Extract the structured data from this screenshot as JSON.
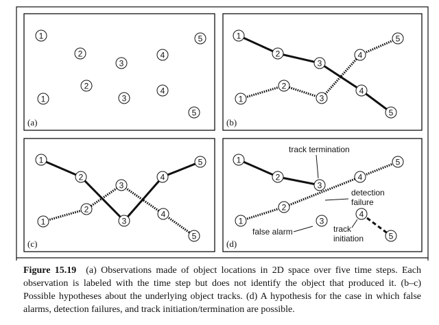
{
  "panels": [
    {
      "id": "a",
      "label": "(a)",
      "nodes": [
        {
          "t": "1"
        },
        {
          "t": "2"
        },
        {
          "t": "3"
        },
        {
          "t": "4"
        },
        {
          "t": "5"
        },
        {
          "t": "1"
        },
        {
          "t": "2"
        },
        {
          "t": "3"
        },
        {
          "t": "4"
        },
        {
          "t": "5"
        }
      ],
      "tracks": []
    },
    {
      "id": "b",
      "label": "(b)",
      "nodes": [
        {
          "t": "1"
        },
        {
          "t": "2"
        },
        {
          "t": "3"
        },
        {
          "t": "4"
        },
        {
          "t": "5"
        },
        {
          "t": "1"
        },
        {
          "t": "2"
        },
        {
          "t": "3"
        },
        {
          "t": "4"
        },
        {
          "t": "5"
        }
      ],
      "tracks": [
        {
          "style": "solid",
          "nodes": [
            0,
            1,
            2,
            8,
            9
          ]
        },
        {
          "style": "dotted",
          "nodes": [
            5,
            6,
            7,
            3,
            4
          ]
        }
      ]
    },
    {
      "id": "c",
      "label": "(c)",
      "nodes": [
        {
          "t": "1"
        },
        {
          "t": "2"
        },
        {
          "t": "3"
        },
        {
          "t": "4"
        },
        {
          "t": "5"
        },
        {
          "t": "1"
        },
        {
          "t": "2"
        },
        {
          "t": "3"
        },
        {
          "t": "4"
        },
        {
          "t": "5"
        }
      ],
      "tracks": [
        {
          "style": "solid",
          "nodes": [
            0,
            1,
            7,
            3,
            4
          ]
        },
        {
          "style": "dotted",
          "nodes": [
            5,
            6,
            2,
            8,
            9
          ]
        }
      ]
    },
    {
      "id": "d",
      "label": "(d)",
      "nodes": [
        {
          "t": "1"
        },
        {
          "t": "2"
        },
        {
          "t": "3"
        },
        {
          "t": "4"
        },
        {
          "t": "5"
        },
        {
          "t": "1"
        },
        {
          "t": "2"
        },
        {
          "t": "3"
        },
        {
          "t": "4"
        },
        {
          "t": "5"
        }
      ],
      "tracks": [
        {
          "style": "solid",
          "nodes": [
            0,
            1,
            2
          ]
        },
        {
          "style": "dotted",
          "nodes": [
            5,
            6,
            3,
            4
          ]
        },
        {
          "style": "dashed",
          "nodes": [
            8,
            9
          ]
        }
      ],
      "annotations": {
        "track_termination": "track termination",
        "detection_failure_1": "detection",
        "detection_failure_2": "failure",
        "false_alarm": "false alarm",
        "track_initiation_1": "track",
        "track_initiation_2": "initiation"
      }
    }
  ],
  "caption": {
    "figure_label": "Figure 15.19",
    "text": "(a) Observations made of object locations in 2D space over five time steps. Each observation is labeled with the time step but does not identify the object that produced it. (b–c) Possible hypotheses about the underlying object tracks. (d) A hypothesis for the case in which false alarms, detection failures, and track initiation/termination are possible."
  }
}
